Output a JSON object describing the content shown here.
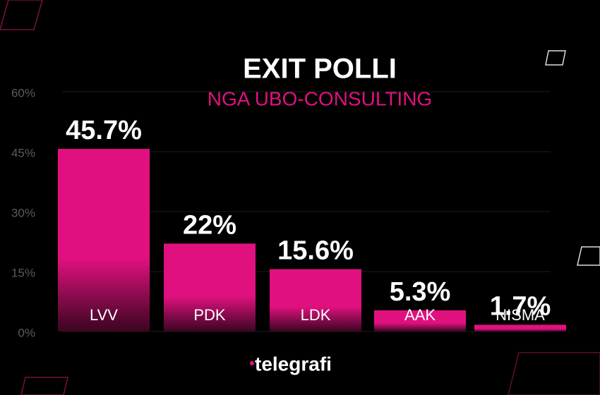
{
  "chart_data": {
    "type": "bar",
    "title": "EXIT POLLI",
    "subtitle": "NGA UBO-CONSULTING",
    "categories": [
      "LVV",
      "PDK",
      "LDK",
      "AAK",
      "NISMA"
    ],
    "values": [
      45.7,
      22,
      15.6,
      5.3,
      1.7
    ],
    "value_labels": [
      "45.7%",
      "22%",
      "15.6%",
      "5.3%",
      "1.7%"
    ],
    "color": "#e0117f",
    "ylim": [
      0,
      60
    ],
    "yticks": [
      {
        "value": 0,
        "label": "0%"
      },
      {
        "value": 15,
        "label": "15%"
      },
      {
        "value": 30,
        "label": "30%"
      },
      {
        "value": 45,
        "label": "45%"
      },
      {
        "value": 60,
        "label": "60%"
      }
    ],
    "grid": true,
    "brand": "telegrafi"
  }
}
